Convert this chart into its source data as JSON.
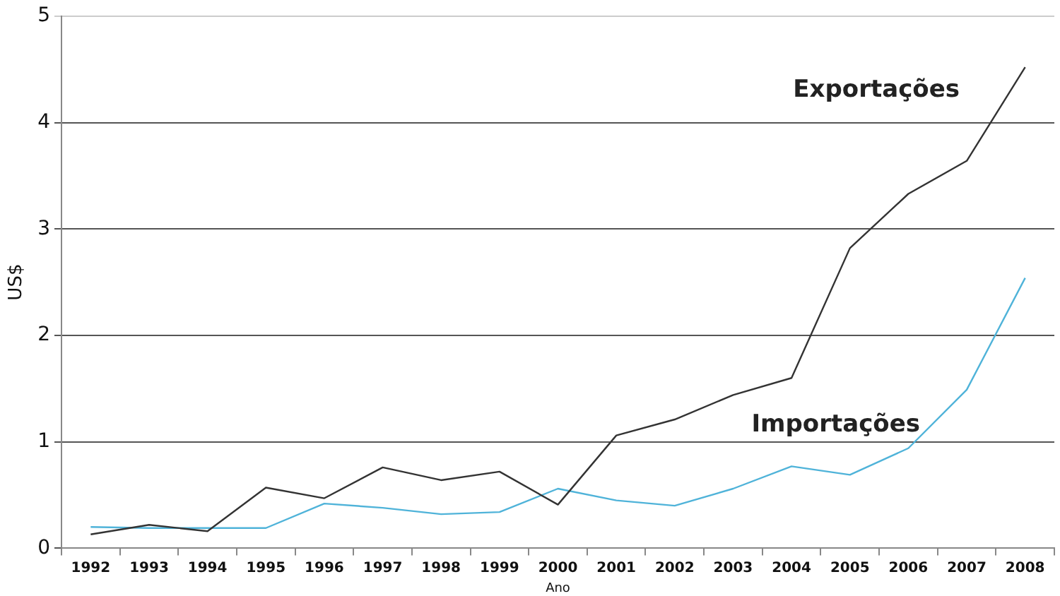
{
  "chart_data": {
    "type": "line",
    "xlabel": "Ano",
    "ylabel": "US$",
    "categories": [
      "1992",
      "1993",
      "1994",
      "1995",
      "1996",
      "1997",
      "1998",
      "1999",
      "2000",
      "2001",
      "2002",
      "2003",
      "2004",
      "2005",
      "2006",
      "2007",
      "2008"
    ],
    "series": [
      {
        "name": "Exportações",
        "color": "#333333",
        "values": [
          0.13,
          0.22,
          0.16,
          0.57,
          0.47,
          0.76,
          0.64,
          0.72,
          0.41,
          1.06,
          1.21,
          1.44,
          1.6,
          2.82,
          3.33,
          3.64,
          4.52
        ]
      },
      {
        "name": "Importações",
        "color": "#4fb3d9",
        "values": [
          0.2,
          0.19,
          0.19,
          0.19,
          0.42,
          0.38,
          0.32,
          0.34,
          0.56,
          0.45,
          0.4,
          0.56,
          0.77,
          0.69,
          0.94,
          1.49,
          2.54
        ]
      }
    ],
    "ylim": [
      0,
      5
    ],
    "yticks": [
      0,
      1,
      2,
      3,
      4,
      5
    ],
    "grid": "y",
    "legend": false,
    "marker": "none",
    "line_style": "solid"
  }
}
